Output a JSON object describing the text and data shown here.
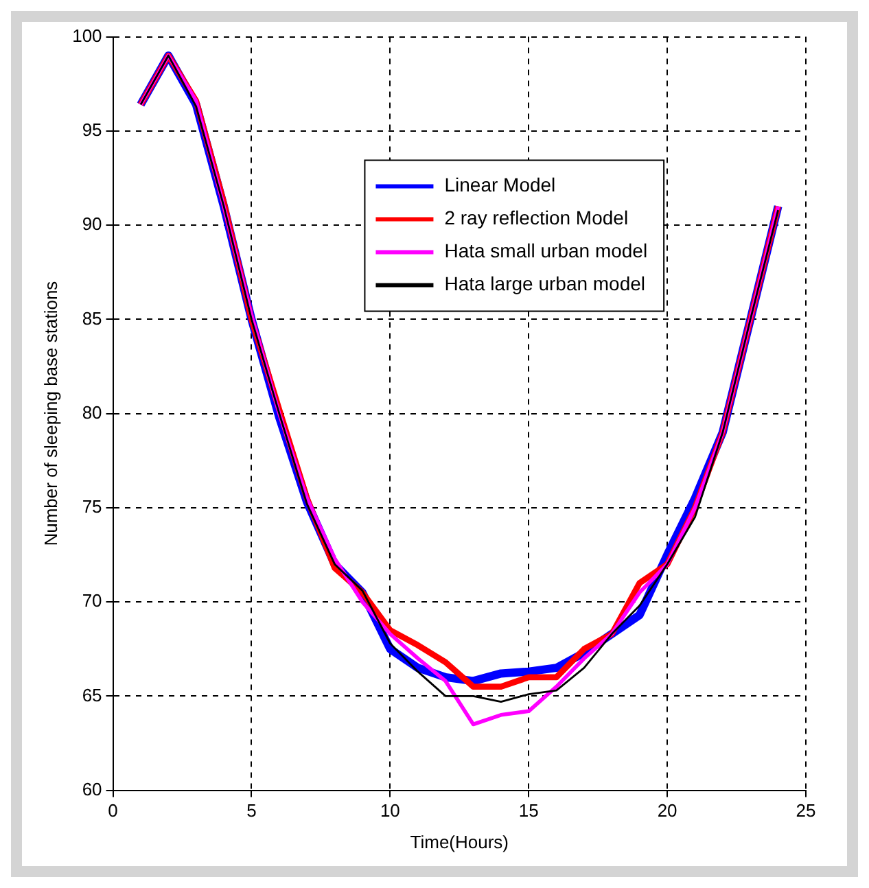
{
  "chart_data": {
    "type": "line",
    "xlabel": "Time(Hours)",
    "ylabel": "Number of sleeping base stations",
    "x": [
      1,
      2,
      3,
      4,
      5,
      6,
      7,
      8,
      9,
      10,
      11,
      12,
      13,
      14,
      15,
      16,
      17,
      18,
      19,
      20,
      21,
      22,
      23,
      24
    ],
    "xlim": [
      0,
      25
    ],
    "xticks": [
      0,
      5,
      10,
      15,
      20,
      25
    ],
    "ylim": [
      60,
      100
    ],
    "yticks": [
      60,
      65,
      70,
      75,
      80,
      85,
      90,
      95,
      100
    ],
    "grid": true,
    "legend": "top",
    "marker": "none",
    "line_style": "solid",
    "series": [
      {
        "name": "Linear Model",
        "color": "#0000ff",
        "values": [
          96.4,
          99,
          96.4,
          91,
          85,
          79.8,
          75.3,
          72,
          70.5,
          67.5,
          66.5,
          66,
          65.8,
          66.2,
          66.3,
          66.5,
          67.3,
          68.3,
          69.3,
          72.5,
          75.5,
          79,
          85,
          91
        ]
      },
      {
        "name": "2 ray reflection Model",
        "color": "#ff0000",
        "values": [
          96.4,
          99,
          96.6,
          91.2,
          85,
          80.2,
          75.5,
          71.8,
          70.5,
          68.5,
          67.7,
          66.8,
          65.5,
          65.5,
          66,
          66,
          67.5,
          68.3,
          71,
          72,
          75,
          79,
          85,
          91
        ]
      },
      {
        "name": "Hata small urban model",
        "color": "#ff00ff",
        "values": [
          96.4,
          99,
          96.6,
          91,
          85.2,
          80,
          75.5,
          72.3,
          70,
          68.3,
          67,
          65.8,
          63.5,
          64,
          64.2,
          65.5,
          67,
          68.3,
          70.5,
          72,
          75,
          79,
          85,
          91
        ]
      },
      {
        "name": "Hata large urban model",
        "color": "#000000",
        "values": [
          96.4,
          99,
          96.3,
          91,
          85,
          80,
          75.2,
          72,
          70.6,
          67.8,
          66.3,
          65,
          65,
          64.7,
          65.1,
          65.3,
          66.5,
          68.3,
          69.8,
          72,
          74.5,
          79,
          85,
          90.8
        ]
      }
    ]
  }
}
